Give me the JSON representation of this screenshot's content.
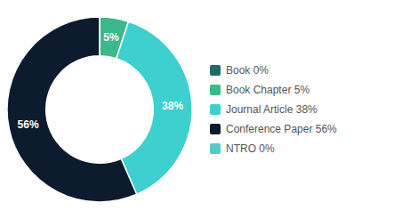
{
  "chart_data": {
    "type": "pie",
    "categories": [
      "Book 0%",
      "Book Chapter 5%",
      "Journal Article 38%",
      "Conference Paper 56%",
      "NTRO 0%"
    ],
    "values": [
      0.001,
      5,
      38,
      56,
      0.001
    ],
    "value_labels": [
      null,
      "5%",
      "38%",
      "56%",
      null
    ],
    "data_labels": true,
    "colors": [
      "#1b6b6b",
      "#3cb88a",
      "#3ecfcf",
      "#0d1b2e",
      "#5bc8c8"
    ],
    "legend": "right"
  }
}
